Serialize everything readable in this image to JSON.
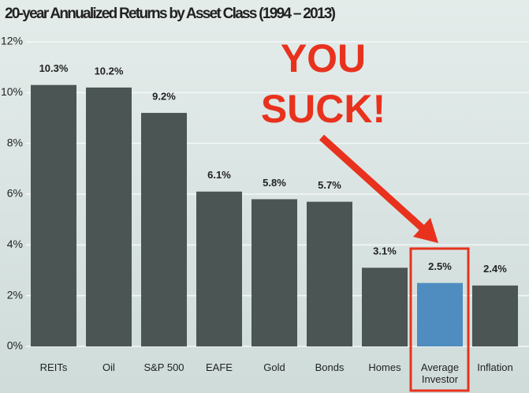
{
  "chart_data": {
    "type": "bar",
    "title": "20-year Annualized Returns by Asset Class (1994 – 2013)",
    "categories": [
      "REITs",
      "Oil",
      "S&P 500",
      "EAFE",
      "Gold",
      "Bonds",
      "Homes",
      "Average Investor",
      "Inflation"
    ],
    "values": [
      10.3,
      10.2,
      9.2,
      6.1,
      5.8,
      5.7,
      3.1,
      2.5,
      2.4
    ],
    "value_labels": [
      "10.3%",
      "10.2%",
      "9.2%",
      "6.1%",
      "5.8%",
      "5.7%",
      "3.1%",
      "2.5%",
      "2.4%"
    ],
    "colors": [
      "#4b5553",
      "#4b5553",
      "#4b5553",
      "#4b5553",
      "#4b5553",
      "#4b5553",
      "#4b5553",
      "#4f8dc0",
      "#4b5553"
    ],
    "ylim": [
      0,
      12
    ],
    "yticks": [
      {
        "value": 0,
        "label": "0%"
      },
      {
        "value": 2,
        "label": "2%"
      },
      {
        "value": 4,
        "label": "4%"
      },
      {
        "value": 6,
        "label": "6%"
      },
      {
        "value": 8,
        "label": "8%"
      },
      {
        "value": 10,
        "label": "10%"
      },
      {
        "value": 12,
        "label": "12%"
      }
    ],
    "grid": true,
    "annotation": [
      "YOU",
      "SUCK!"
    ]
  }
}
